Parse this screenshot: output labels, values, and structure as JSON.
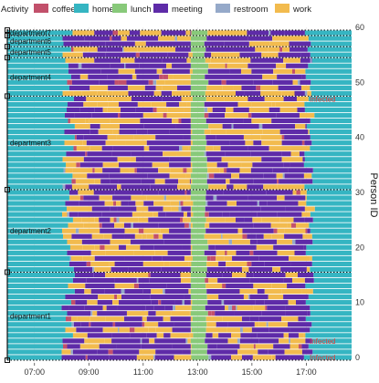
{
  "chart_data": {
    "type": "timeline",
    "title": "",
    "legend": {
      "title": "Activity",
      "placement": "top",
      "items": [
        {
          "label": "coffee",
          "color": "#c2506b"
        },
        {
          "label": "home",
          "color": "#35b5c2"
        },
        {
          "label": "lunch",
          "color": "#88c97a"
        },
        {
          "label": "meeting",
          "color": "#5e2ba8"
        },
        {
          "label": "restroom",
          "color": "#95a9c9"
        },
        {
          "label": "work",
          "color": "#f2bb4e"
        }
      ]
    },
    "x_axis": {
      "range": [
        "06:00",
        "18:40"
      ],
      "ticks": [
        "07:00",
        "09:00",
        "11:00",
        "13:00",
        "15:00",
        "17:00"
      ]
    },
    "y_axis": {
      "label": "Person ID",
      "range": [
        -1,
        60
      ],
      "ticks": [
        0,
        10,
        20,
        30,
        40,
        50,
        60
      ]
    },
    "departments": [
      {
        "name": "department1",
        "from": 0,
        "to": 15
      },
      {
        "name": "department2",
        "from": 16,
        "to": 30
      },
      {
        "name": "department3",
        "from": 31,
        "to": 47
      },
      {
        "name": "department4",
        "from": 48,
        "to": 54
      },
      {
        "name": "department5",
        "from": 55,
        "to": 56
      },
      {
        "name": "department6",
        "from": 57,
        "to": 58
      },
      {
        "name": "department7",
        "from": 59,
        "to": 59
      }
    ],
    "annotations": [
      {
        "text": "Infected",
        "person": 47
      },
      {
        "text": "Infected",
        "person": 3
      },
      {
        "text": "Infected",
        "person": 0
      }
    ],
    "lunch_window": [
      "12:50",
      "13:15"
    ],
    "grid": true
  }
}
